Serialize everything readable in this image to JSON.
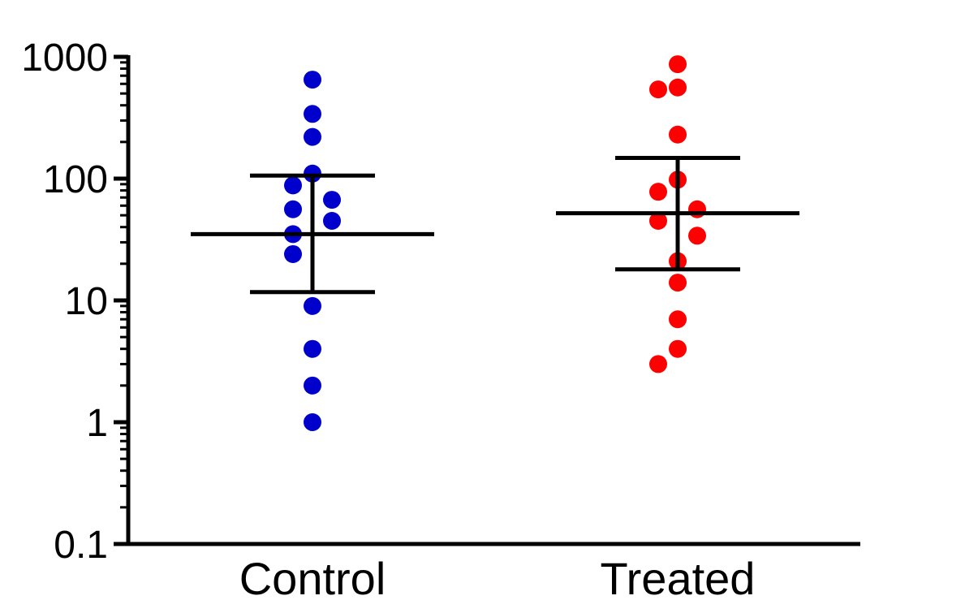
{
  "chart_data": {
    "type": "scatter",
    "subtype": "dot-plot with median and interquartile range",
    "title": "",
    "xlabel": "",
    "ylabel": "",
    "yscale": "log",
    "ylim": [
      0.1,
      1000
    ],
    "y_tick_labels": [
      "0.1",
      "1",
      "10",
      "100",
      "1000"
    ],
    "categories": [
      "Control",
      "Treated"
    ],
    "colors": {
      "Control": "#0000CC",
      "Treated": "#FF0000",
      "axis": "#000000"
    },
    "series": [
      {
        "category": "Control",
        "values": [
          650,
          340,
          220,
          110,
          88,
          67,
          56,
          45,
          35,
          24,
          9,
          4,
          2,
          1
        ],
        "center": 35,
        "error_upper": 106,
        "error_lower": 11.7
      },
      {
        "category": "Treated",
        "values": [
          870,
          560,
          540,
          230,
          98,
          78,
          56,
          45,
          34,
          21,
          14,
          7,
          4,
          3
        ],
        "center": 52,
        "error_upper": 148,
        "error_lower": 18
      }
    ]
  }
}
